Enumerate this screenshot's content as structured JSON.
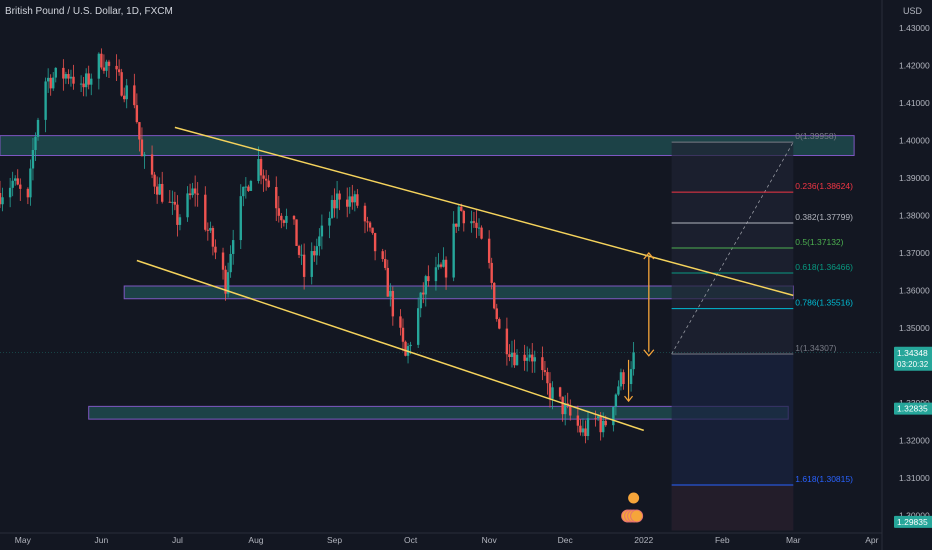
{
  "header": {
    "title": "British Pound / U.S. Dollar, 1D, FXCM",
    "currency": "USD"
  },
  "colors": {
    "background": "#131722",
    "up": "#26a69a",
    "down": "#ef5350",
    "channel": "#f5d35c",
    "zone_fill": "#1e4a4d",
    "zone_border": "#7e57c2",
    "arrow": "#f6a53a",
    "price_badge": "#26a69a",
    "axis_text": "#b2b5be"
  },
  "chart_data": {
    "type": "candlestick",
    "title": "British Pound / U.S. Dollar, 1D, FXCM",
    "y_axis": {
      "unit": "USD",
      "ticks": [
        "1.43000",
        "1.42000",
        "1.41000",
        "1.40000",
        "1.39000",
        "1.38000",
        "1.37000",
        "1.36000",
        "1.35000",
        "1.34000",
        "1.33000",
        "1.32000",
        "1.31000",
        "1.30000"
      ],
      "range": [
        1.296,
        1.434
      ]
    },
    "x_axis": {
      "ticks": [
        "May",
        "Jun",
        "Jul",
        "Aug",
        "Sep",
        "Oct",
        "Nov",
        "Dec",
        "2022",
        "Feb",
        "Mar",
        "Apr"
      ],
      "range": [
        "2021-04-22",
        "2022-04-05"
      ]
    },
    "price_path": [
      {
        "date": "2021-04-22",
        "price": 1.386
      },
      {
        "date": "2021-04-27",
        "price": 1.389
      },
      {
        "date": "2021-05-03",
        "price": 1.383
      },
      {
        "date": "2021-05-05",
        "price": 1.397
      },
      {
        "date": "2021-05-09",
        "price": 1.416
      },
      {
        "date": "2021-05-20",
        "price": 1.418
      },
      {
        "date": "2021-05-24",
        "price": 1.413
      },
      {
        "date": "2021-06-01",
        "price": 1.422
      },
      {
        "date": "2021-06-10",
        "price": 1.414
      },
      {
        "date": "2021-06-14",
        "price": 1.411
      },
      {
        "date": "2021-06-17",
        "price": 1.395
      },
      {
        "date": "2021-06-25",
        "price": 1.386
      },
      {
        "date": "2021-07-01",
        "price": 1.379
      },
      {
        "date": "2021-07-08",
        "price": 1.387
      },
      {
        "date": "2021-07-12",
        "price": 1.378
      },
      {
        "date": "2021-07-20",
        "price": 1.362
      },
      {
        "date": "2021-07-23",
        "price": 1.376
      },
      {
        "date": "2021-08-01",
        "price": 1.396
      },
      {
        "date": "2021-08-10",
        "price": 1.382
      },
      {
        "date": "2021-08-16",
        "price": 1.376
      },
      {
        "date": "2021-08-20",
        "price": 1.364
      },
      {
        "date": "2021-08-27",
        "price": 1.375
      },
      {
        "date": "2021-09-03",
        "price": 1.386
      },
      {
        "date": "2021-09-10",
        "price": 1.383
      },
      {
        "date": "2021-09-20",
        "price": 1.366
      },
      {
        "date": "2021-09-29",
        "price": 1.342
      },
      {
        "date": "2021-10-07",
        "price": 1.362
      },
      {
        "date": "2021-10-15",
        "price": 1.366
      },
      {
        "date": "2021-10-20",
        "price": 1.382
      },
      {
        "date": "2021-10-26",
        "price": 1.378
      },
      {
        "date": "2021-11-01",
        "price": 1.366
      },
      {
        "date": "2021-11-05",
        "price": 1.349
      },
      {
        "date": "2021-11-12",
        "price": 1.342
      },
      {
        "date": "2021-11-17",
        "price": 1.344
      },
      {
        "date": "2021-11-24",
        "price": 1.334
      },
      {
        "date": "2021-12-01",
        "price": 1.328
      },
      {
        "date": "2021-12-08",
        "price": 1.322
      },
      {
        "date": "2021-12-14",
        "price": 1.326
      },
      {
        "date": "2021-12-16",
        "price": 1.323
      },
      {
        "date": "2021-12-22",
        "price": 1.335
      },
      {
        "date": "2021-12-28",
        "price": 1.342
      }
    ],
    "channel_lines": [
      {
        "from": {
          "date": "2021-06-30",
          "price": 1.4035
        },
        "to": {
          "date": "2022-03-01",
          "price": 1.3587
        }
      },
      {
        "from": {
          "date": "2021-06-15",
          "price": 1.368
        },
        "to": {
          "date": "2022-01-01",
          "price": 1.3227
        }
      }
    ],
    "zones": [
      {
        "from_date": "2021-04-22",
        "to_date": "2022-03-25",
        "low": 1.396,
        "high": 1.4013
      },
      {
        "from_date": "2021-06-10",
        "to_date": "2022-03-01",
        "low": 1.3578,
        "high": 1.3612
      },
      {
        "from_date": "2021-05-27",
        "to_date": "2022-02-27",
        "low": 1.3257,
        "high": 1.3291
      }
    ],
    "fibonacci": {
      "from_date": "2022-01-12",
      "to_date": "2022-03-01",
      "levels": [
        {
          "label": "0(1.39958)",
          "price": 1.39958,
          "color": "#787b86"
        },
        {
          "label": "0.236(1.38624)",
          "price": 1.38624,
          "color": "#f23645"
        },
        {
          "label": "0.382(1.37799)",
          "price": 1.37799,
          "color": "#b2b5be"
        },
        {
          "label": "0.5(1.37132)",
          "price": 1.37132,
          "color": "#4caf50"
        },
        {
          "label": "0.618(1.36466)",
          "price": 1.36466,
          "color": "#089981"
        },
        {
          "label": "0.786(1.35516)",
          "price": 1.35516,
          "color": "#00bcd4"
        },
        {
          "label": "1(1.34307)",
          "price": 1.34307,
          "color": "#787b86"
        },
        {
          "label": "1.618(1.30815)",
          "price": 1.30815,
          "color": "#2962ff"
        }
      ]
    },
    "projection_arrow": {
      "date": "2022-01-03",
      "top": 1.37,
      "bottom": 1.3426
    },
    "price_labels": [
      {
        "text": "1.34348",
        "price": 1.3434,
        "sub": "03:20:32"
      },
      {
        "text": "1.32835",
        "price": 1.3285
      },
      {
        "text": "1.29835",
        "price": 1.2983
      }
    ],
    "grid": false,
    "legend": "none"
  }
}
